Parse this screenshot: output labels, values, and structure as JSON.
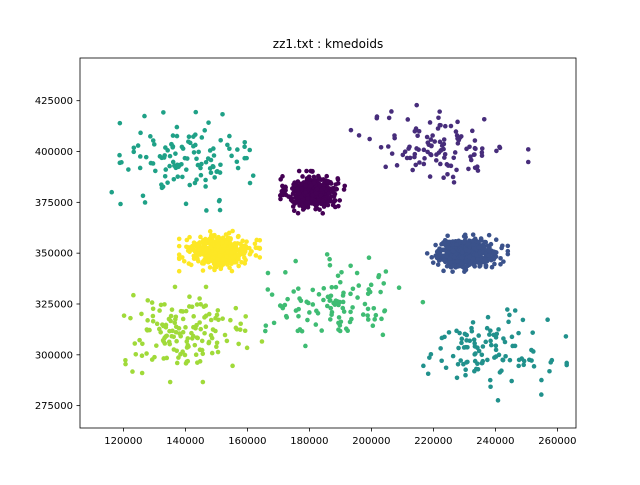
{
  "chart_data": {
    "type": "scatter",
    "title": "zz1.txt : kmedoids",
    "xlabel": "",
    "ylabel": "",
    "xlim": [
      106000,
      266000
    ],
    "ylim": [
      264000,
      446000
    ],
    "x_ticks": [
      120000,
      140000,
      160000,
      180000,
      200000,
      220000,
      240000,
      260000
    ],
    "y_ticks": [
      275000,
      300000,
      325000,
      350000,
      375000,
      400000,
      425000
    ],
    "x_tick_labels": [
      "120000",
      "140000",
      "160000",
      "180000",
      "200000",
      "220000",
      "240000",
      "260000"
    ],
    "y_tick_labels": [
      "275000",
      "300000",
      "325000",
      "350000",
      "375000",
      "400000",
      "425000"
    ],
    "grid": false,
    "legend": "none",
    "clusters": [
      {
        "color": "#440154",
        "center": [
          181000,
          380000
        ],
        "spread": [
          4000,
          4000
        ],
        "count": 420
      },
      {
        "color": "#472d7b",
        "center": [
          222000,
          402000
        ],
        "spread": [
          11000,
          8000
        ],
        "count": 110
      },
      {
        "color": "#3b528b",
        "center": [
          231000,
          350000
        ],
        "spread": [
          5000,
          3500
        ],
        "count": 420
      },
      {
        "color": "#21918c",
        "center": [
          237000,
          301000
        ],
        "spread": [
          10000,
          9000
        ],
        "count": 110
      },
      {
        "color": "#1fa187",
        "center": [
          141000,
          397000
        ],
        "spread": [
          10000,
          10000
        ],
        "count": 120
      },
      {
        "color": "#3fbc73",
        "center": [
          188000,
          326000
        ],
        "spread": [
          11000,
          9000
        ],
        "count": 110
      },
      {
        "color": "#a0da39",
        "center": [
          140000,
          310000
        ],
        "spread": [
          10000,
          9000
        ],
        "count": 150
      },
      {
        "color": "#fde725",
        "center": [
          151000,
          351000
        ],
        "spread": [
          5000,
          3800
        ],
        "count": 420
      }
    ]
  }
}
